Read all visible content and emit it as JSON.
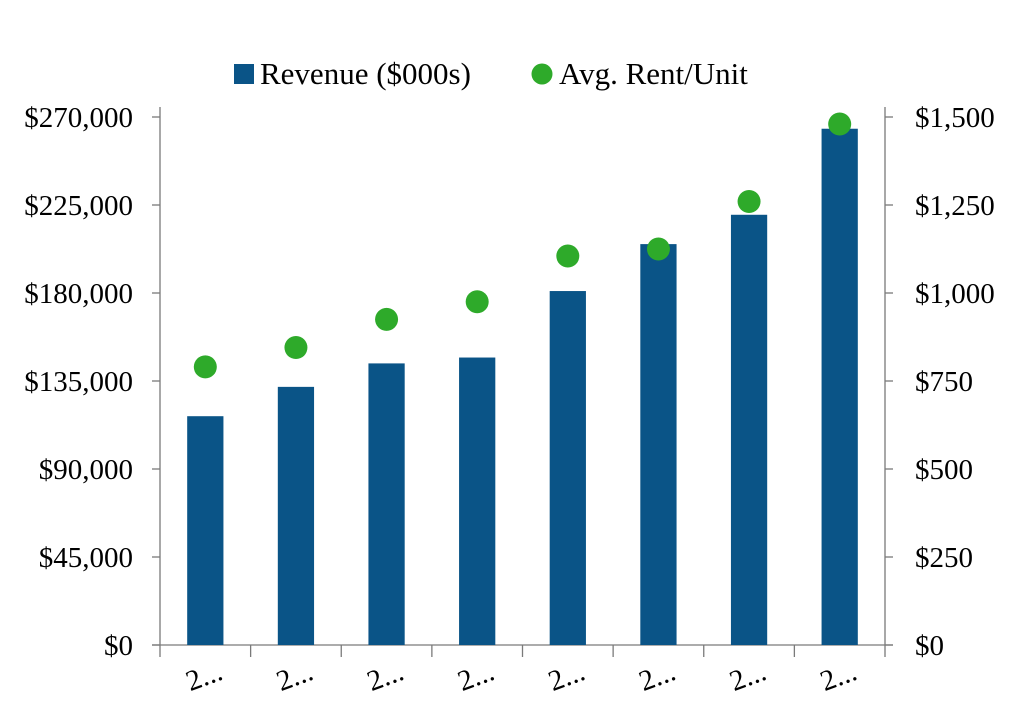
{
  "chart_data": {
    "type": "bar",
    "categories": [
      "2...",
      "2...",
      "2...",
      "2...",
      "2...",
      "2...",
      "2...",
      "2..."
    ],
    "series": [
      {
        "name": "Revenue ($000s)",
        "type": "bar",
        "axis": "left",
        "color": "#0a5487",
        "values": [
          117000,
          132000,
          144000,
          147000,
          181000,
          205000,
          220000,
          264000
        ]
      },
      {
        "name": "Avg. Rent/Unit",
        "type": "scatter",
        "axis": "right",
        "color": "#2eaa2a",
        "values": [
          790,
          845,
          925,
          975,
          1105,
          1125,
          1260,
          1480
        ]
      }
    ],
    "y_left": {
      "ylim": [
        0,
        270000
      ],
      "ticks": [
        0,
        45000,
        90000,
        135000,
        180000,
        225000,
        270000
      ],
      "tick_labels": [
        "$0",
        "$45,000",
        "$90,000",
        "$135,000",
        "$180,000",
        "$225,000",
        "$270,000"
      ]
    },
    "y_right": {
      "ylim": [
        0,
        1500
      ],
      "ticks": [
        0,
        250,
        500,
        750,
        1000,
        1250,
        1500
      ],
      "tick_labels": [
        "$0",
        "$250",
        "$500",
        "$750",
        "$1,000",
        "$1,250",
        "$1,500"
      ]
    },
    "legend": {
      "placement": "top-center",
      "entries": [
        {
          "label": "Revenue ($000s)",
          "marker": "square",
          "color": "#0a5487"
        },
        {
          "label": "Avg. Rent/Unit",
          "marker": "circle",
          "color": "#2eaa2a"
        }
      ]
    },
    "grid": false,
    "title": "",
    "xlabel": "",
    "ylabel": ""
  }
}
